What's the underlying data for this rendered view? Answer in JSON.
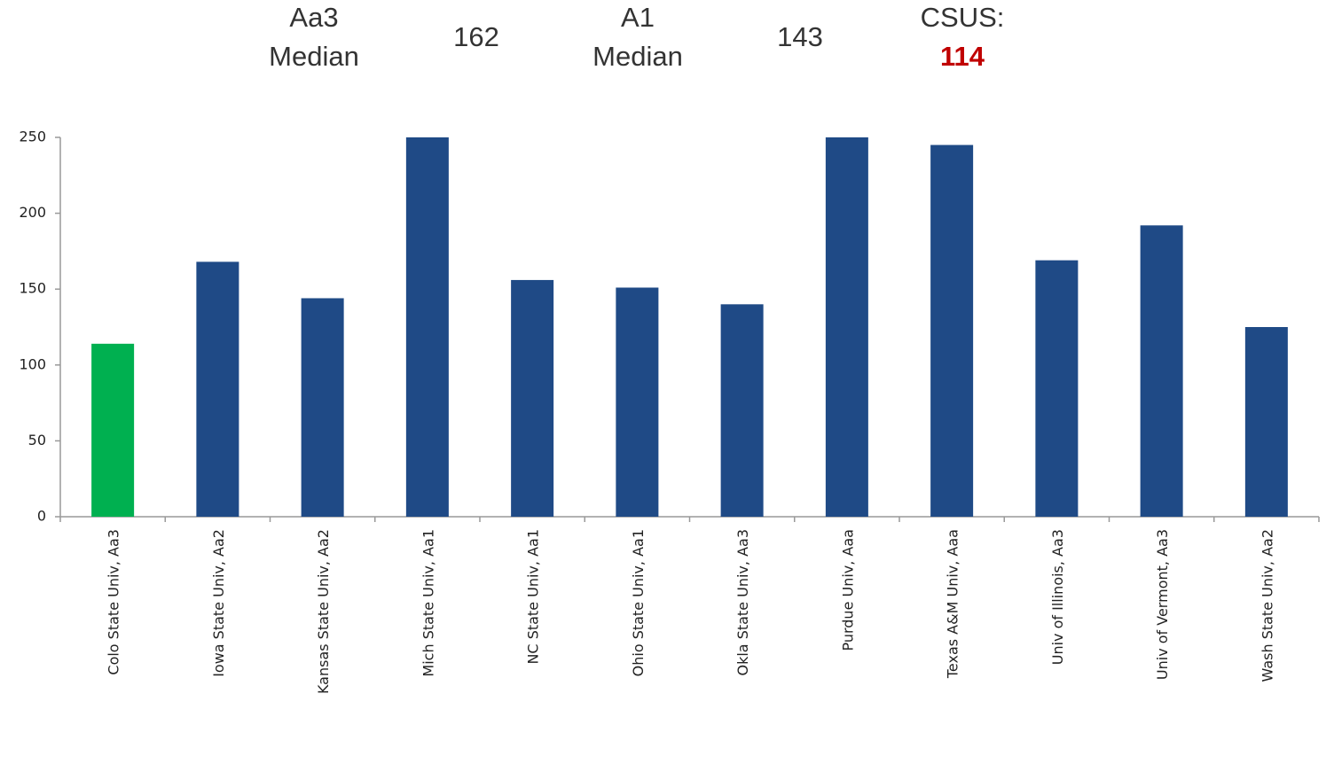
{
  "chart_data": {
    "type": "bar",
    "annotations": [
      {
        "label": [
          "Aa3",
          "Median"
        ],
        "value": 162
      },
      {
        "label": [
          "A1",
          "Median"
        ],
        "value": 143
      },
      {
        "label": [
          "CSUS:"
        ],
        "value": 114,
        "color": "#c00000"
      }
    ],
    "categories": [
      "Colo State Univ, Aa3",
      "Iowa State Univ, Aa2",
      "Kansas State Univ, Aa2",
      "Mich State Univ, Aa1",
      "NC State Univ, Aa1",
      "Ohio State Univ, Aa1",
      "Okla State Univ, Aa3",
      "Purdue Univ, Aaa",
      "Texas A&M Univ, Aaa",
      "Univ of Illinois, Aa3",
      "Univ of Vermont, Aa3",
      "Wash State Univ, Aa2"
    ],
    "values": [
      114,
      168,
      144,
      250,
      156,
      151,
      140,
      250,
      245,
      169,
      192,
      125
    ],
    "colors": [
      "#00b050",
      "#1f4a86",
      "#1f4a86",
      "#1f4a86",
      "#1f4a86",
      "#1f4a86",
      "#1f4a86",
      "#1f4a86",
      "#1f4a86",
      "#1f4a86",
      "#1f4a86",
      "#1f4a86"
    ],
    "ylim": [
      0,
      250
    ],
    "yticks": [
      0,
      50,
      100,
      150,
      200,
      250
    ],
    "grid": false
  }
}
